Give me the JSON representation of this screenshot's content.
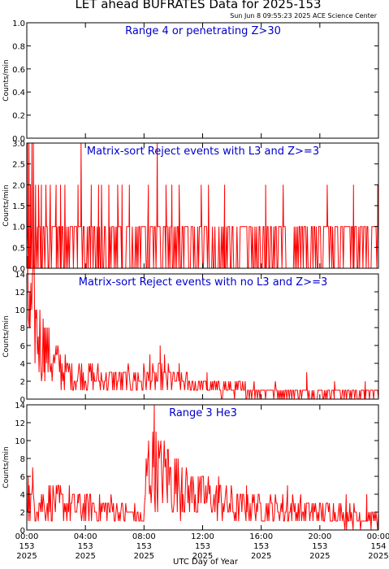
{
  "title": "LET ahead BUFRATES Data for 2025-153",
  "timestamp": "Sun Jun  8 09:55:23 2025 ACE Science Center",
  "xlabel": "UTC Day of Year",
  "colors": {
    "series": "#ff0000",
    "panel_title": "#0000cc",
    "axes": "#000000"
  },
  "chart_data": [
    {
      "type": "line",
      "title": "Range 4 or  penetrating Z>30",
      "ylabel": "Counts/min",
      "ylim": [
        0,
        1.0
      ],
      "yticks": [
        "0.0",
        "0.2",
        "0.4",
        "0.6",
        "0.8",
        "1.0"
      ],
      "xlim": [
        0,
        24
      ],
      "x_unit": "hours UTC, DOY 153",
      "baseline": 0,
      "profile": [
        [
          0,
          0
        ],
        [
          24,
          0
        ]
      ],
      "spikes": []
    },
    {
      "type": "line",
      "title": "Matrix-sort Reject events with L3 and Z>=3",
      "ylabel": "Counts/min",
      "ylim": [
        0,
        3.0
      ],
      "yticks": [
        "0.0",
        "0.5",
        "1.0",
        "1.5",
        "2.0",
        "2.5",
        "3.0"
      ],
      "xlim": [
        0,
        24
      ],
      "x_unit": "hours UTC, DOY 153",
      "baseline": 1,
      "profile": [
        [
          0,
          1
        ],
        [
          24,
          1
        ]
      ],
      "spikes": [
        [
          0.05,
          3
        ],
        [
          0.15,
          3
        ],
        [
          0.25,
          2
        ],
        [
          0.35,
          3
        ],
        [
          0.45,
          3
        ],
        [
          0.6,
          2
        ],
        [
          0.8,
          2
        ],
        [
          1.0,
          2
        ],
        [
          1.3,
          2
        ],
        [
          1.6,
          2
        ],
        [
          2.0,
          2
        ],
        [
          2.3,
          2
        ],
        [
          2.6,
          2
        ],
        [
          3.7,
          3
        ],
        [
          3.5,
          2
        ],
        [
          4.4,
          2
        ],
        [
          4.9,
          2
        ],
        [
          5.1,
          2
        ],
        [
          5.6,
          2
        ],
        [
          6.2,
          2
        ],
        [
          6.5,
          2
        ],
        [
          7.0,
          2
        ],
        [
          8.3,
          2
        ],
        [
          8.9,
          3
        ],
        [
          9.5,
          2
        ],
        [
          9.9,
          2
        ],
        [
          10.4,
          2
        ],
        [
          11.9,
          2
        ],
        [
          12.4,
          2
        ],
        [
          13.5,
          2
        ],
        [
          16.3,
          2
        ],
        [
          17.5,
          2
        ],
        [
          20.5,
          2
        ],
        [
          22.3,
          2
        ],
        [
          23.95,
          2
        ]
      ]
    },
    {
      "type": "line",
      "title": "Matrix-sort Reject events with no L3 and Z>=3",
      "ylabel": "Counts/min",
      "ylim": [
        0,
        14
      ],
      "yticks": [
        "0",
        "2",
        "4",
        "6",
        "8",
        "10",
        "12",
        "14"
      ],
      "xlim": [
        0,
        24
      ],
      "x_unit": "hours UTC, DOY 153",
      "baseline": 0,
      "profile": [
        [
          0,
          9
        ],
        [
          0.5,
          8
        ],
        [
          1.0,
          6
        ],
        [
          1.5,
          4.5
        ],
        [
          2.0,
          3.5
        ],
        [
          3.0,
          2.5
        ],
        [
          5.0,
          2
        ],
        [
          7.0,
          2
        ],
        [
          8.5,
          2
        ],
        [
          9.5,
          2
        ],
        [
          11.0,
          1.5
        ],
        [
          14.0,
          1
        ],
        [
          18.0,
          0.8
        ],
        [
          24.0,
          0.6
        ]
      ],
      "spikes": [
        [
          0.05,
          14
        ],
        [
          0.2,
          12
        ],
        [
          0.3,
          11
        ],
        [
          0.6,
          10
        ],
        [
          1.2,
          8
        ],
        [
          2.0,
          6
        ],
        [
          8.4,
          5
        ],
        [
          9.1,
          6
        ],
        [
          9.4,
          5
        ],
        [
          10.4,
          4
        ],
        [
          12.3,
          3
        ],
        [
          19.1,
          3
        ],
        [
          21.0,
          2
        ],
        [
          23.1,
          2
        ]
      ]
    },
    {
      "type": "line",
      "title": "Range 3 He3",
      "ylabel": "Counts/min",
      "ylim": [
        0,
        14
      ],
      "yticks": [
        "0",
        "2",
        "4",
        "6",
        "8",
        "10",
        "12",
        "14"
      ],
      "xlim": [
        0,
        24
      ],
      "x_unit": "hours UTC, DOY 153",
      "baseline": 0,
      "profile": [
        [
          0,
          3
        ],
        [
          3.0,
          2.5
        ],
        [
          6.0,
          2
        ],
        [
          7.3,
          1.5
        ],
        [
          8.0,
          1.0
        ],
        [
          8.2,
          6.5
        ],
        [
          9.0,
          6
        ],
        [
          10.0,
          5
        ],
        [
          11.0,
          4
        ],
        [
          12.0,
          3.5
        ],
        [
          14.0,
          2.5
        ],
        [
          17.0,
          2.2
        ],
        [
          20.0,
          1.8
        ],
        [
          24.0,
          1.2
        ]
      ],
      "spikes": [
        [
          0.1,
          6
        ],
        [
          0.4,
          7
        ],
        [
          1.6,
          5
        ],
        [
          3.5,
          4
        ],
        [
          8.7,
          14
        ],
        [
          8.3,
          9
        ],
        [
          9.6,
          9
        ],
        [
          10.6,
          7
        ],
        [
          11.7,
          6
        ],
        [
          13.1,
          6
        ],
        [
          15.0,
          5
        ],
        [
          17.8,
          5
        ],
        [
          21.8,
          4
        ],
        [
          23.2,
          4
        ]
      ]
    }
  ],
  "x_axis": {
    "ticks": [
      {
        "x": 0,
        "time": "00:00",
        "doy": "153",
        "year": "2025"
      },
      {
        "x": 4,
        "time": "04:00",
        "doy": "153",
        "year": "2025"
      },
      {
        "x": 8,
        "time": "08:00",
        "doy": "153",
        "year": "2025"
      },
      {
        "x": 12,
        "time": "12:00",
        "doy": "153",
        "year": "2025"
      },
      {
        "x": 16,
        "time": "16:00",
        "doy": "153",
        "year": "2025"
      },
      {
        "x": 20,
        "time": "20:00",
        "doy": "153",
        "year": "2025"
      },
      {
        "x": 24,
        "time": "00:00",
        "doy": "154",
        "year": "2025"
      }
    ]
  }
}
